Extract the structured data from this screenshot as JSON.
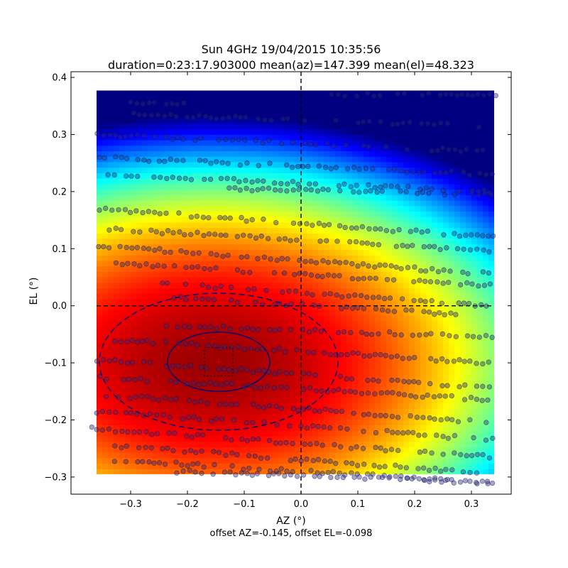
{
  "chart_data": {
    "type": "heatmap",
    "title": "Sun 4GHz 19/04/2015 10:35:56",
    "subtitle": "duration=0:23:17.903000 mean(az)=147.399 mean(el)=48.323",
    "xlabel": "AZ (°)",
    "ylabel": "EL (°)",
    "footnote": "offset AZ=-0.145, offset EL=-0.098",
    "xlim": [
      -0.405,
      0.37
    ],
    "ylim": [
      -0.33,
      0.41
    ],
    "x_ticks": [
      -0.3,
      -0.2,
      -0.1,
      0.0,
      0.1,
      0.2,
      0.3
    ],
    "y_ticks": [
      -0.3,
      -0.2,
      -0.1,
      0.0,
      0.1,
      0.2,
      0.3,
      0.4
    ],
    "x_tick_labels": [
      "−0.3",
      "−0.2",
      "−0.1",
      "0.0",
      "0.1",
      "0.2",
      "0.3"
    ],
    "y_tick_labels": [
      "−0.3",
      "−0.2",
      "−0.1",
      "0.0",
      "0.1",
      "0.2",
      "0.3",
      "0.4"
    ],
    "heatmap_extent": {
      "x": [
        -0.36,
        0.34
      ],
      "y": [
        -0.295,
        0.377
      ]
    },
    "colormap": "jet",
    "peak": {
      "az": -0.155,
      "el": -0.1
    },
    "crosshair": {
      "az": 0.0,
      "el": 0.0
    },
    "offset_marker": {
      "az": -0.145,
      "el": -0.098,
      "half_width": 0.025,
      "half_height": 0.025
    },
    "beam_ellipses": [
      {
        "style": "solid",
        "center_az": -0.145,
        "center_el": -0.098,
        "radius_az": 0.09,
        "radius_el": 0.052
      },
      {
        "style": "dashed",
        "center_az": -0.145,
        "center_el": -0.098,
        "radius_az": 0.21,
        "radius_el": 0.12
      }
    ],
    "scan_rows": [
      {
        "el": 0.37,
        "az_min": 0.05,
        "az_max": 0.35,
        "drift": 0.0
      },
      {
        "el": 0.355,
        "az_min": -0.3,
        "az_max": -0.2,
        "drift": 0.0
      },
      {
        "el": 0.335,
        "az_min": -0.3,
        "az_max": 0.34,
        "drift": -0.02
      },
      {
        "el": 0.3,
        "az_min": -0.36,
        "az_max": 0.33,
        "drift": -0.03
      },
      {
        "el": 0.26,
        "az_min": -0.36,
        "az_max": 0.34,
        "drift": -0.03
      },
      {
        "el": 0.23,
        "az_min": -0.35,
        "az_max": 0.34,
        "drift": -0.03
      },
      {
        "el": 0.205,
        "az_min": -0.13,
        "az_max": 0.34,
        "drift": -0.01
      },
      {
        "el": 0.17,
        "az_min": -0.36,
        "az_max": 0.34,
        "drift": -0.05
      },
      {
        "el": 0.135,
        "az_min": -0.34,
        "az_max": 0.34,
        "drift": -0.04
      },
      {
        "el": 0.105,
        "az_min": -0.36,
        "az_max": 0.34,
        "drift": -0.05
      },
      {
        "el": 0.075,
        "az_min": -0.33,
        "az_max": 0.34,
        "drift": -0.04
      },
      {
        "el": 0.04,
        "az_min": -0.25,
        "az_max": 0.33,
        "drift": -0.04
      },
      {
        "el": 0.015,
        "az_min": -0.24,
        "az_max": 0.28,
        "drift": -0.03
      },
      {
        "el": -0.035,
        "az_min": -0.24,
        "az_max": 0.34,
        "drift": -0.02
      },
      {
        "el": -0.06,
        "az_min": -0.33,
        "az_max": 0.34,
        "drift": -0.04
      },
      {
        "el": -0.095,
        "az_min": -0.36,
        "az_max": 0.34,
        "drift": -0.05
      },
      {
        "el": -0.125,
        "az_min": -0.36,
        "az_max": 0.34,
        "drift": -0.04
      },
      {
        "el": -0.155,
        "az_min": -0.36,
        "az_max": 0.34,
        "drift": -0.05
      },
      {
        "el": -0.185,
        "az_min": -0.36,
        "az_max": 0.34,
        "drift": -0.05
      },
      {
        "el": -0.215,
        "az_min": -0.37,
        "az_max": 0.34,
        "drift": -0.05
      },
      {
        "el": -0.245,
        "az_min": -0.33,
        "az_max": 0.34,
        "drift": -0.05
      },
      {
        "el": -0.27,
        "az_min": -0.33,
        "az_max": 0.33,
        "drift": -0.04
      },
      {
        "el": -0.29,
        "az_min": -0.22,
        "az_max": 0.34,
        "drift": -0.02
      }
    ],
    "grid": false,
    "legend": "none"
  }
}
